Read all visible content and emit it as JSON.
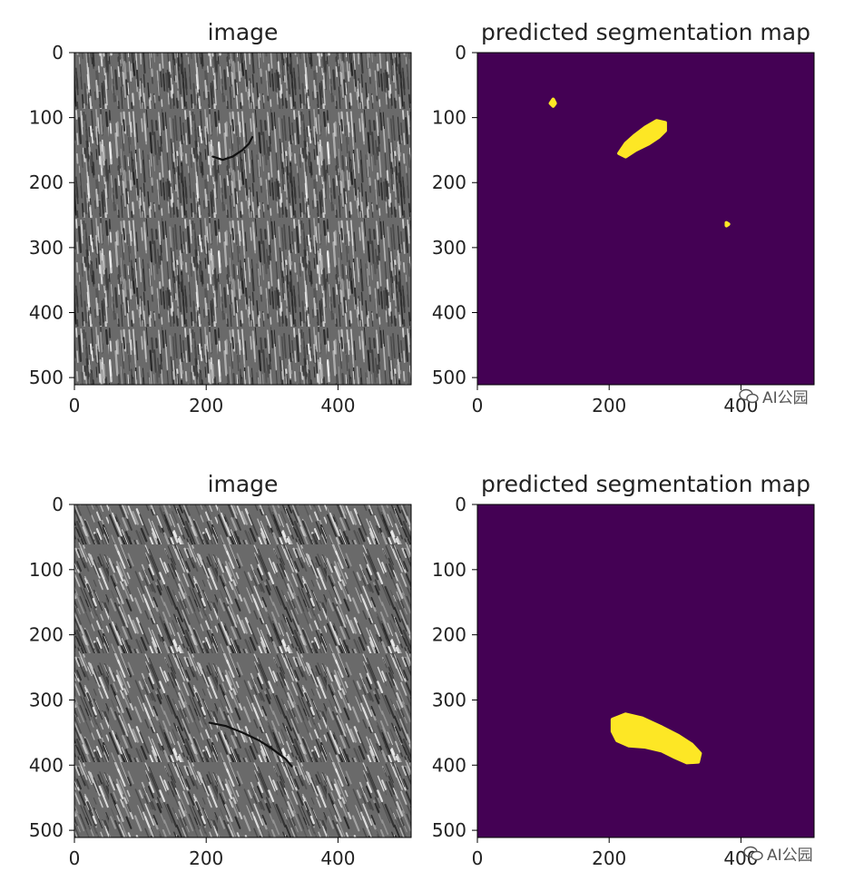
{
  "chart_data": [
    {
      "type": "heatmap",
      "title": "image",
      "xlim": [
        0,
        511
      ],
      "ylim": [
        511,
        0
      ],
      "xticks": [
        0,
        200,
        400
      ],
      "yticks": [
        0,
        100,
        200,
        300,
        400,
        500
      ],
      "content": "grayscale noisy texture with vertical streaks",
      "crack_polyline": [
        [
          210,
          160
        ],
        [
          225,
          165
        ],
        [
          240,
          160
        ],
        [
          255,
          150
        ],
        [
          265,
          140
        ],
        [
          270,
          130
        ]
      ]
    },
    {
      "type": "heatmap",
      "title": "predicted segmentation map",
      "xlim": [
        0,
        511
      ],
      "ylim": [
        511,
        0
      ],
      "xticks": [
        0,
        200,
        400
      ],
      "yticks": [
        0,
        100,
        200,
        300,
        400,
        500
      ],
      "background_color": "#440154",
      "foreground_color": "#fde725",
      "blobs": [
        {
          "points": [
            [
              225,
              160
            ],
            [
              240,
              150
            ],
            [
              260,
              140
            ],
            [
              275,
              130
            ],
            [
              285,
              120
            ],
            [
              285,
              108
            ],
            [
              272,
              105
            ],
            [
              255,
              115
            ],
            [
              238,
              128
            ],
            [
              225,
              140
            ],
            [
              215,
              155
            ]
          ],
          "label": "segmented crack"
        },
        {
          "points": [
            [
              115,
              72
            ],
            [
              118,
              78
            ],
            [
              115,
              82
            ],
            [
              111,
              78
            ]
          ],
          "label": "speck"
        },
        {
          "points": [
            [
              378,
              262
            ],
            [
              381,
              264
            ],
            [
              378,
              266
            ]
          ],
          "label": "speck"
        }
      ]
    },
    {
      "type": "heatmap",
      "title": "image",
      "xlim": [
        0,
        511
      ],
      "ylim": [
        511,
        0
      ],
      "xticks": [
        0,
        200,
        400
      ],
      "yticks": [
        0,
        100,
        200,
        300,
        400,
        500
      ],
      "content": "grayscale noisy texture with diagonal streaks",
      "crack_polyline": [
        [
          205,
          335
        ],
        [
          230,
          340
        ],
        [
          255,
          350
        ],
        [
          280,
          362
        ],
        [
          300,
          375
        ],
        [
          320,
          390
        ],
        [
          330,
          402
        ]
      ]
    },
    {
      "type": "heatmap",
      "title": "predicted segmentation map",
      "xlim": [
        0,
        511
      ],
      "ylim": [
        511,
        0
      ],
      "xticks": [
        0,
        200,
        400
      ],
      "yticks": [
        0,
        100,
        200,
        300,
        400,
        500
      ],
      "background_color": "#440154",
      "foreground_color": "#fde725",
      "blobs": [
        {
          "points": [
            [
              205,
              330
            ],
            [
              225,
              322
            ],
            [
              250,
              328
            ],
            [
              280,
              342
            ],
            [
              305,
              355
            ],
            [
              325,
              368
            ],
            [
              338,
              382
            ],
            [
              335,
              395
            ],
            [
              318,
              396
            ],
            [
              300,
              388
            ],
            [
              280,
              378
            ],
            [
              255,
              372
            ],
            [
              230,
              370
            ],
            [
              212,
              362
            ],
            [
              205,
              348
            ]
          ],
          "label": "segmented crack"
        }
      ]
    }
  ],
  "watermark": {
    "text": "AI公园",
    "icon": "wechat-icon"
  }
}
